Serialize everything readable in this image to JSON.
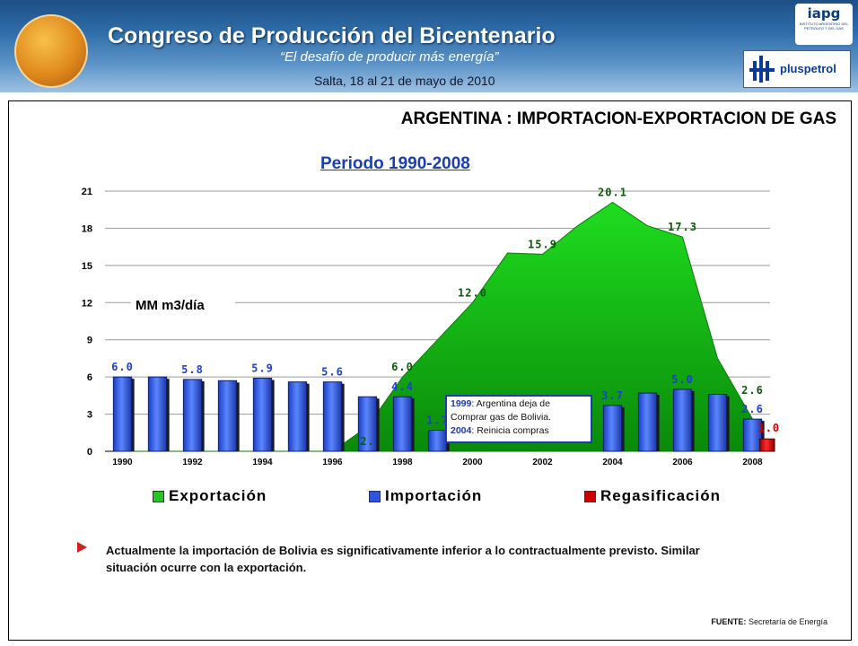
{
  "header": {
    "title": "Congreso de Producción del Bicentenario",
    "subtitle": "“El desafío de producir más energía”",
    "dates": "Salta, 18 al 21 de mayo de 2010",
    "iapg_logo_text": "iapg",
    "iapg_logo_sub": "INSTITUTO ARGENTINO DEL PETROLEO Y DEL GAS",
    "sponsor_text": "pluspetrol"
  },
  "slide": {
    "heading": "ARGENTINA : IMPORTACION-EXPORTACION DE GAS",
    "period": "Periodo 1990-2008",
    "note": {
      "y1": "1999",
      "t1": ": Argentina deja de",
      "t2": "Comprar gas de Bolivia.",
      "y2": "2004",
      "t3": ": Reinicia compras"
    },
    "bullet": "Actualmente la importación de Bolivia es significativamente inferior a lo contractualmente previsto. Similar situación ocurre con la exportación.",
    "source_label": "FUENTE:",
    "source_value": "Secretaría de Energía"
  },
  "chart_data": {
    "type": "bar",
    "ylabel": "MM m3/día",
    "ylim": [
      0,
      21
    ],
    "yticks": [
      "0",
      "3",
      "6",
      "9",
      "12",
      "15",
      "18",
      "21"
    ],
    "categories": [
      "1990",
      "1991",
      "1992",
      "1993",
      "1994",
      "1995",
      "1996",
      "1997",
      "1998",
      "1999",
      "2000",
      "2001",
      "2002",
      "2003",
      "2004",
      "2005",
      "2006",
      "2007",
      "2008"
    ],
    "xtick_labels": [
      "1990",
      "1992",
      "1994",
      "1996",
      "1998",
      "2000",
      "2002",
      "2004",
      "2006",
      "2008"
    ],
    "grid": true,
    "legend_position": "bottom",
    "series": [
      {
        "name": "Exportación",
        "kind": "area",
        "color": "#22c722",
        "values": [
          0,
          0,
          0,
          0,
          0,
          0,
          0,
          2,
          6.0,
          9.0,
          12.0,
          16.0,
          15.9,
          18.2,
          20.1,
          18.2,
          17.3,
          7.5,
          2.6
        ]
      },
      {
        "name": "Importación",
        "kind": "bar",
        "color": "#2f55e0",
        "values": [
          6.0,
          6.0,
          5.8,
          5.7,
          5.9,
          5.6,
          5.6,
          4.4,
          4.4,
          1.7,
          0,
          0,
          0,
          0,
          3.7,
          4.7,
          5.0,
          4.6,
          2.6
        ]
      },
      {
        "name": "Regasificación",
        "kind": "bar",
        "color": "#cc0000",
        "values": [
          0,
          0,
          0,
          0,
          0,
          0,
          0,
          0,
          0,
          0,
          0,
          0,
          0,
          0,
          0,
          0,
          0,
          0,
          1.0
        ]
      }
    ],
    "data_labels": [
      {
        "series": "Importación",
        "category": "1990",
        "text": "6.0"
      },
      {
        "series": "Importación",
        "category": "1992",
        "text": "5.8"
      },
      {
        "series": "Importación",
        "category": "1994",
        "text": "5.9"
      },
      {
        "series": "Importación",
        "category": "1996",
        "text": "5.6"
      },
      {
        "series": "Importación",
        "category": "1998",
        "text": "4.4"
      },
      {
        "series": "Importación",
        "category": "1999",
        "text": "1.7"
      },
      {
        "series": "Importación",
        "category": "2004",
        "text": "3.7"
      },
      {
        "series": "Importación",
        "category": "2006",
        "text": "5.0"
      },
      {
        "series": "Importación",
        "category": "2008",
        "text": "2.6"
      },
      {
        "series": "Exportación",
        "category": "1997",
        "text": "2."
      },
      {
        "series": "Exportación",
        "category": "1998",
        "text": "6.0"
      },
      {
        "series": "Exportación",
        "category": "2000",
        "text": "12.0"
      },
      {
        "series": "Exportación",
        "category": "2002",
        "text": "15.9"
      },
      {
        "series": "Exportación",
        "category": "2004",
        "text": "20.1"
      },
      {
        "series": "Exportación",
        "category": "2006",
        "text": "17.3"
      },
      {
        "series": "Exportación",
        "category": "2008",
        "text": "2.6"
      },
      {
        "series": "Regasificación",
        "category": "2008",
        "text": "1.0"
      }
    ]
  }
}
